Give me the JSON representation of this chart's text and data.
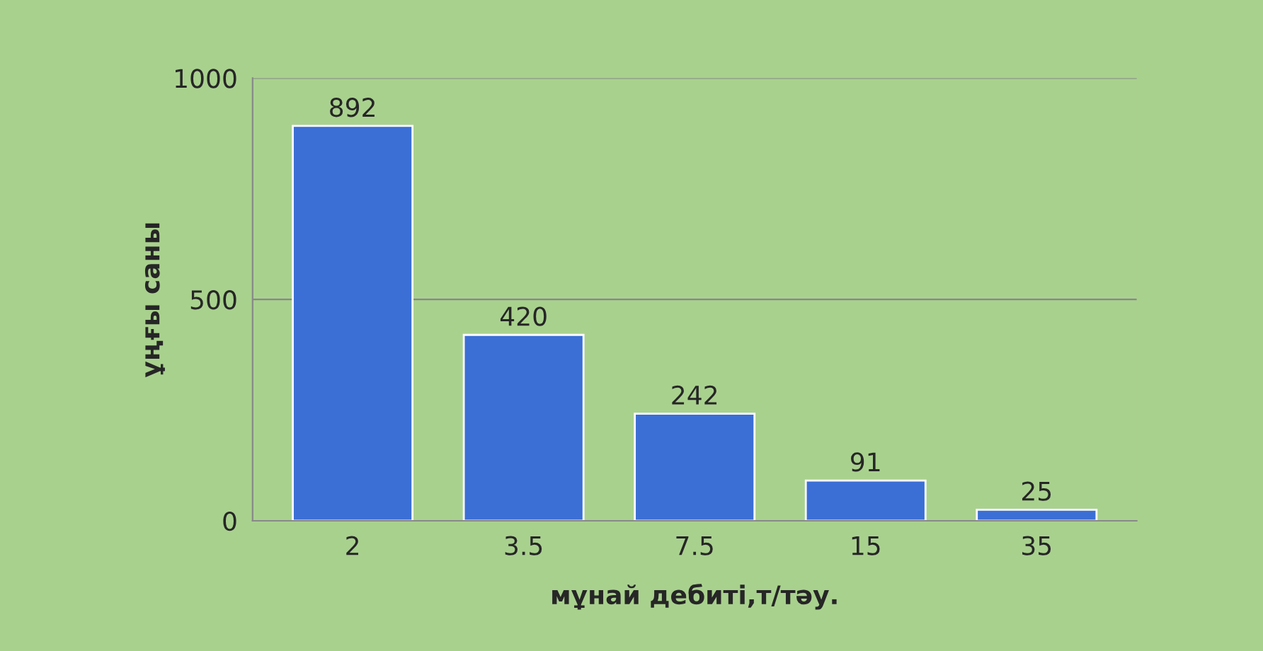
{
  "chart_data": {
    "type": "bar",
    "xlabel": "мұнай дебиті,т/тәу.",
    "ylabel": "ұңғы саны",
    "categories": [
      "2",
      "3.5",
      "7.5",
      "15",
      "35"
    ],
    "values": [
      892,
      420,
      242,
      91,
      25
    ],
    "color": "#3b6fd6",
    "ylim": [
      0,
      1000
    ],
    "yticks": [
      0,
      500,
      1000
    ],
    "grid": "y",
    "data_labels": true
  }
}
